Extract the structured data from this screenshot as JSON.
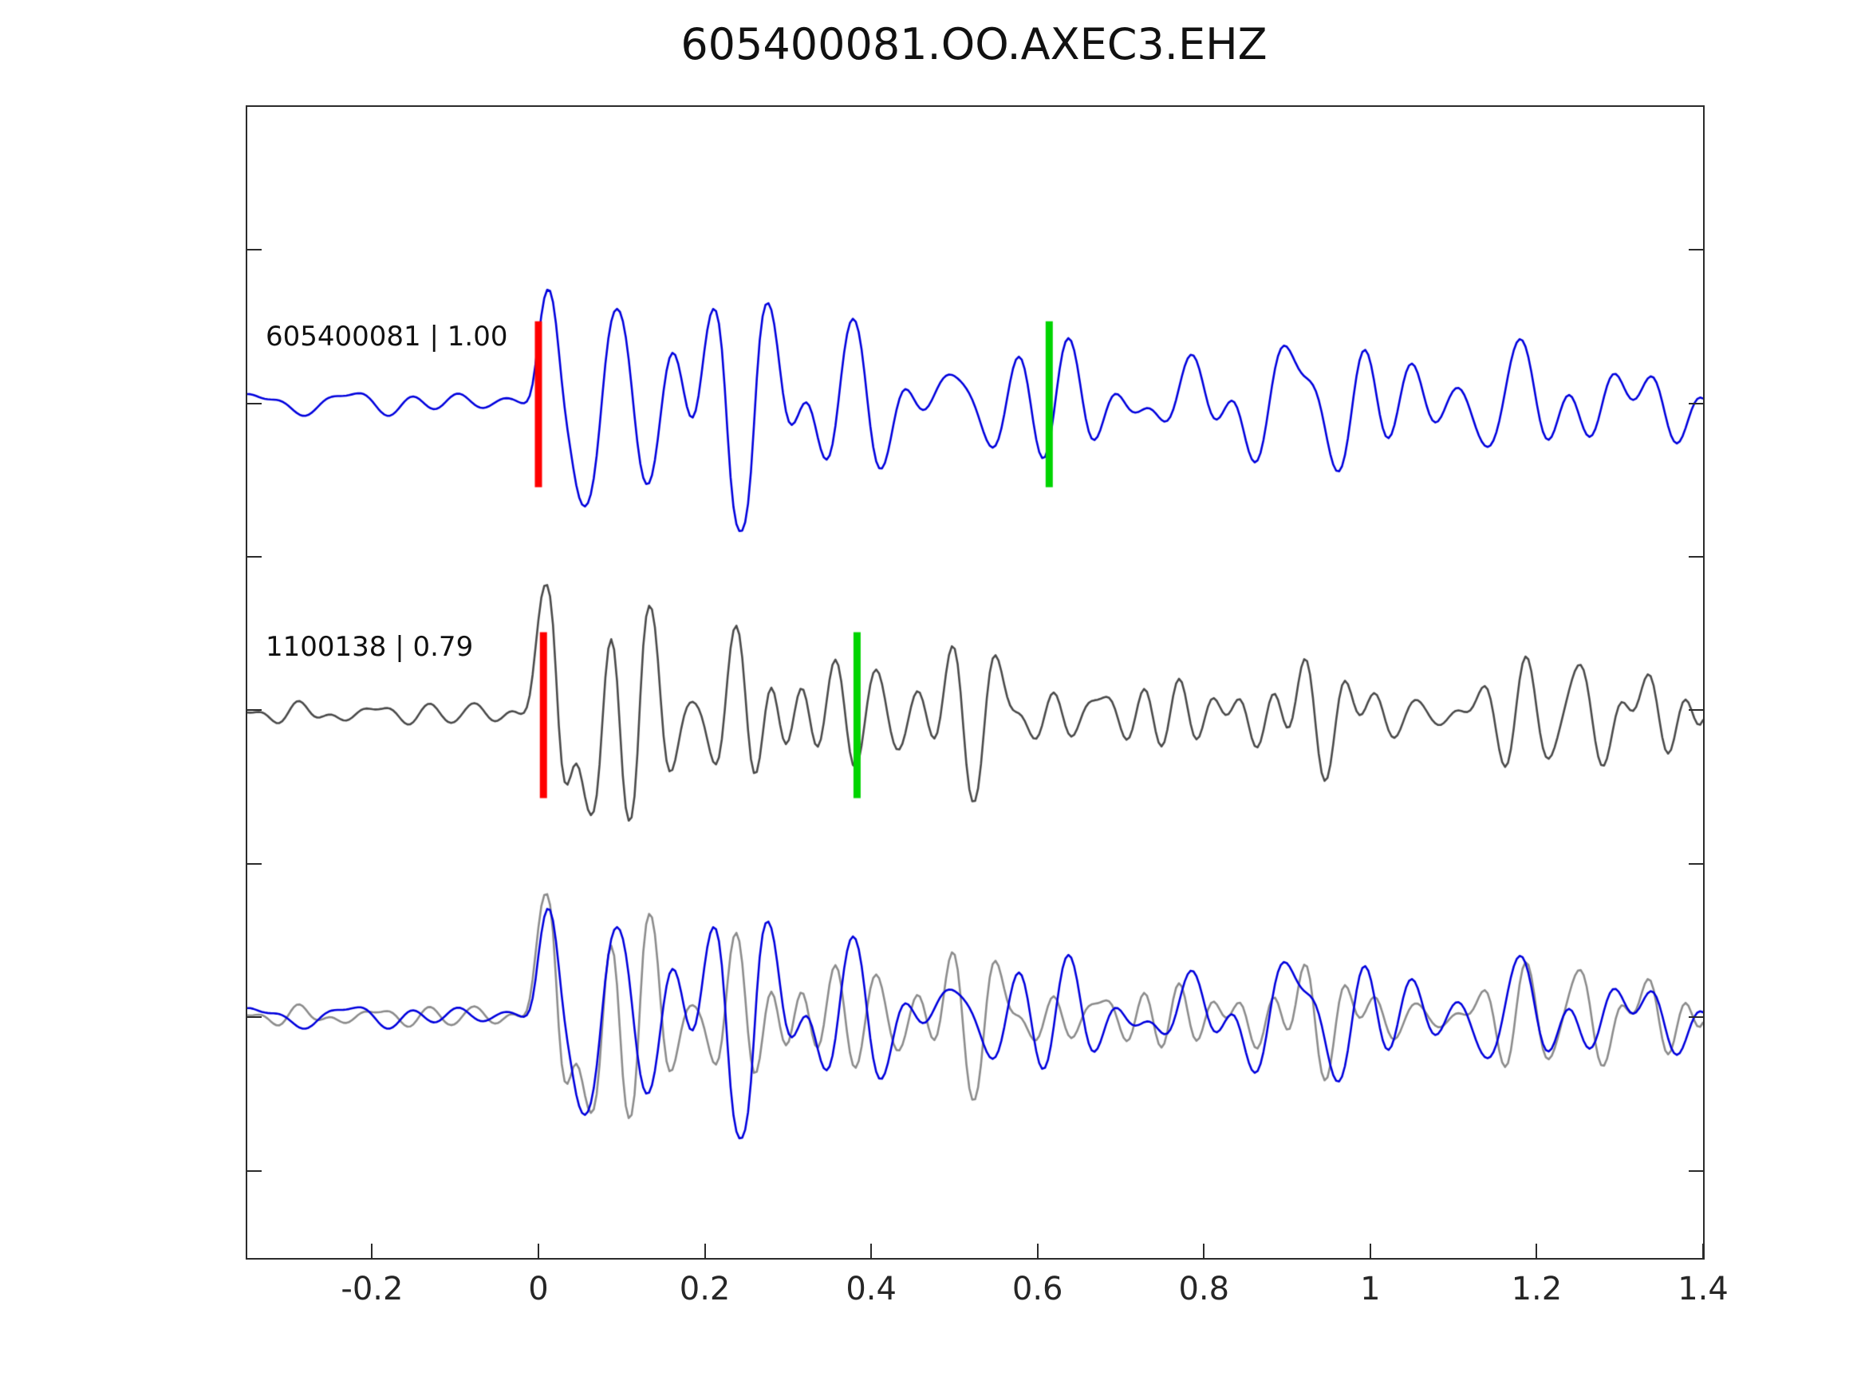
{
  "title": "605400081.OO.AXEC3.EHZ",
  "chart_data": {
    "type": "line",
    "title": "605400081.OO.AXEC3.EHZ",
    "xlabel": "",
    "ylabel": "",
    "xlim": [
      -0.35,
      1.4
    ],
    "xticks": [
      -0.2,
      0,
      0.2,
      0.4,
      0.6,
      0.8,
      1,
      1.2,
      1.4
    ],
    "xtick_labels": [
      "-0.2",
      "0",
      "0.2",
      "0.4",
      "0.6",
      "0.8",
      "1",
      "1.2",
      "1.4"
    ],
    "grid": false,
    "legend": "none",
    "rows": 3,
    "traces": [
      {
        "id": "605400081",
        "label": "605400081 | 1.00",
        "correlation": "1.00",
        "color": "#0000dd",
        "row": 0,
        "red_marker": {
          "x": 0.0,
          "color": "#ff0000"
        },
        "green_marker": {
          "x": 0.614,
          "color": "#00d400"
        },
        "synthesis": {
          "seed": 42,
          "freq_min": 7,
          "freq_max": 23,
          "coda_amp": 0.34,
          "coda_decay": 1.3,
          "coda_floor": 0.15,
          "packet_amp": 0.35,
          "packet_center": 0.245,
          "packet_sigma": 0.055,
          "ring_freq": 14.5,
          "ring_center": 0.26,
          "ring_sigma": 0.05,
          "ring_amp": 0.5,
          "lobes": [
            [
              0.012,
              1.02,
              0.01
            ],
            [
              0.05,
              -0.95,
              0.014
            ],
            [
              0.085,
              0.45,
              0.013
            ]
          ]
        }
      },
      {
        "id": "1100138",
        "label": "1100138 | 0.79",
        "correlation": "0.79",
        "color": "#4a4a4a",
        "row": 1,
        "red_marker": {
          "x": 0.006,
          "color": "#ff0000"
        },
        "green_marker": {
          "x": 0.383,
          "color": "#00d400"
        },
        "synthesis": {
          "seed": 7,
          "freq_min": 9,
          "freq_max": 27,
          "coda_amp": 0.32,
          "coda_decay": 1.2,
          "coda_floor": 0.14,
          "packet_amp": 0.4,
          "packet_center": 0.235,
          "packet_sigma": 0.06,
          "ring_freq": 17,
          "ring_center": 0.235,
          "ring_sigma": 0.055,
          "ring_amp": 0.6,
          "lobes": [
            [
              0.01,
              1.08,
              0.01
            ],
            [
              0.048,
              -0.85,
              0.013
            ]
          ]
        }
      }
    ],
    "overlay": {
      "row": 2,
      "trace_ids": [
        "1100138",
        "605400081"
      ],
      "colors": [
        "#8c8c8c",
        "#0000dd"
      ],
      "amplitude_scale": 0.95
    },
    "synthesis_common": {
      "dt": 0.0035,
      "n_components": 14,
      "pre_noise_amp": 0.1
    }
  },
  "colors": {
    "background": "#ffffff",
    "axis": "#2b2b2b",
    "text": "#1a1a1a"
  }
}
